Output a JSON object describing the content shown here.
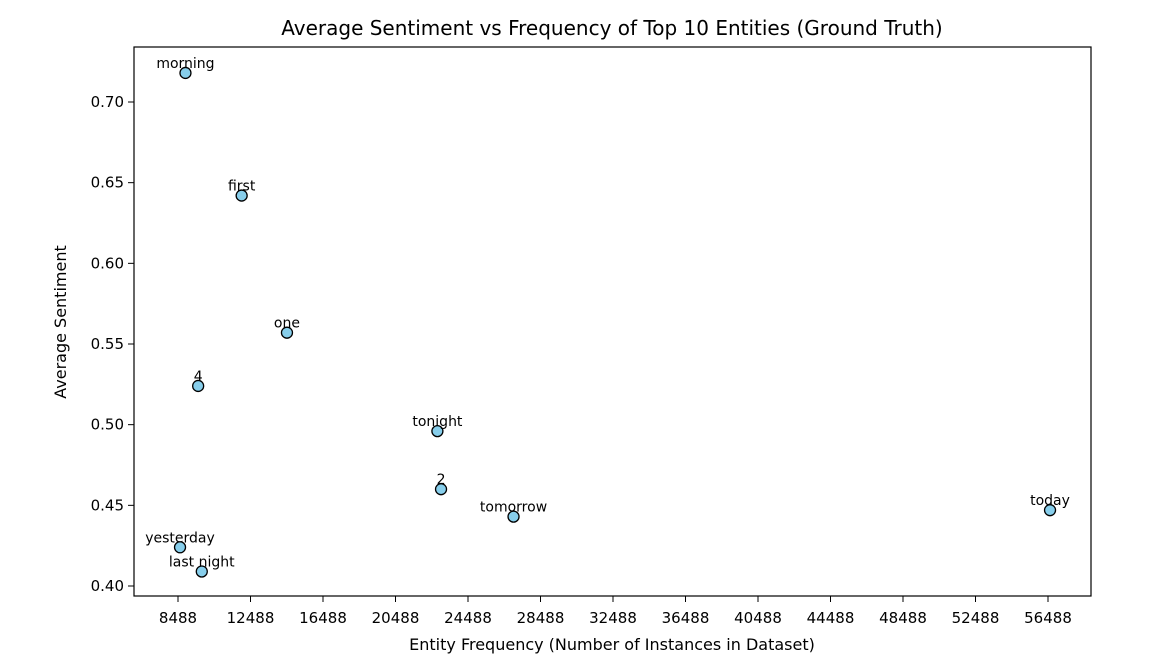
{
  "chart_data": {
    "type": "scatter",
    "title": "Average Sentiment vs Frequency of Top 10 Entities (Ground Truth)",
    "xlabel": "Entity Frequency (Number of Instances in Dataset)",
    "ylabel": "Average Sentiment",
    "xlim": [
      8488,
      56488
    ],
    "ylim": [
      0.4,
      0.7
    ],
    "x_ticks": [
      "8488",
      "12488",
      "16488",
      "20488",
      "24488",
      "28488",
      "32488",
      "36488",
      "40488",
      "44488",
      "48488",
      "52488",
      "56488"
    ],
    "y_ticks": [
      "0.40",
      "0.45",
      "0.50",
      "0.55",
      "0.60",
      "0.65",
      "0.70"
    ],
    "grid": false,
    "marker_color": "#87CEEB",
    "marker_edge_color": "#000000",
    "points": [
      {
        "label": "morning",
        "x": 8900,
        "y": 0.718
      },
      {
        "label": "first",
        "x": 12000,
        "y": 0.642
      },
      {
        "label": "one",
        "x": 14500,
        "y": 0.557
      },
      {
        "label": "4",
        "x": 9600,
        "y": 0.524
      },
      {
        "label": "tonight",
        "x": 22800,
        "y": 0.496
      },
      {
        "label": "2",
        "x": 23000,
        "y": 0.46
      },
      {
        "label": "tomorrow",
        "x": 27000,
        "y": 0.443
      },
      {
        "label": "today",
        "x": 56600,
        "y": 0.447
      },
      {
        "label": "yesterday",
        "x": 8600,
        "y": 0.424
      },
      {
        "label": "last night",
        "x": 9800,
        "y": 0.409
      }
    ]
  }
}
